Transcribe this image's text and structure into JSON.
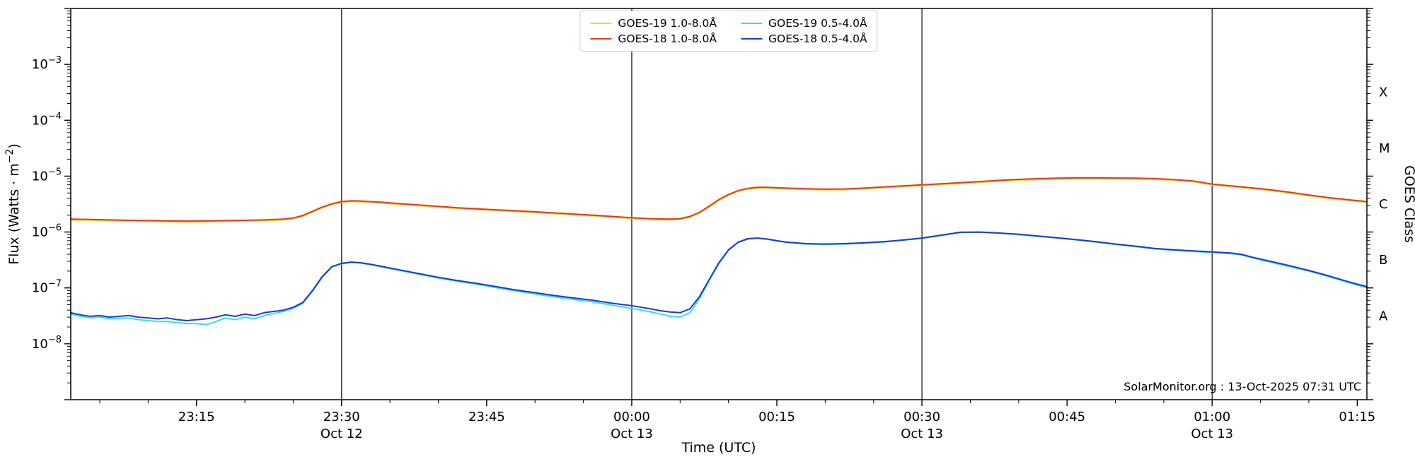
{
  "figure": {
    "background": "#ffffff"
  },
  "legend": {
    "entries": [
      {
        "label": "GOES-19 1.0-8.0Å",
        "color": "#ffd021"
      },
      {
        "label": "GOES-18 1.0-8.0Å",
        "color": "#e8391c"
      },
      {
        "label": "GOES-19 0.5-4.0Å",
        "color": "#2fe1f2"
      },
      {
        "label": "GOES-18 0.5-4.0Å",
        "color": "#2137d6"
      }
    ]
  },
  "chart_data": {
    "type": "line",
    "title": "",
    "xlabel": "Time (UTC)",
    "ylabel": "Flux (Watts · m⁻²)",
    "ylabel_parts": [
      "Flux (Watts · m",
      "−2",
      ")"
    ],
    "right_axis_label": "GOES Class",
    "y_scale": "log",
    "grid": false,
    "legend_position": "upper center",
    "ylim_exponents": [
      -9,
      -2
    ],
    "x_domain_minutes": [
      2,
      136
    ],
    "x_minor_step_minutes": 5,
    "annotation": "SolarMonitor.org : 13-Oct-2025 07:31 UTC",
    "y_ticks": [
      {
        "exponent": -3,
        "base": "10",
        "sup": "−3"
      },
      {
        "exponent": -4,
        "base": "10",
        "sup": "−4"
      },
      {
        "exponent": -5,
        "base": "10",
        "sup": "−5"
      },
      {
        "exponent": -6,
        "base": "10",
        "sup": "−6"
      },
      {
        "exponent": -7,
        "base": "10",
        "sup": "−7"
      },
      {
        "exponent": -8,
        "base": "10",
        "sup": "−8"
      }
    ],
    "x_ticks": [
      {
        "t": 15,
        "label": "23:15"
      },
      {
        "t": 30,
        "label": "23:30",
        "date": "Oct 12"
      },
      {
        "t": 45,
        "label": "23:45"
      },
      {
        "t": 60,
        "label": "00:00",
        "date": "Oct 13"
      },
      {
        "t": 75,
        "label": "00:15"
      },
      {
        "t": 90,
        "label": "00:30",
        "date": "Oct 13"
      },
      {
        "t": 105,
        "label": "00:45"
      },
      {
        "t": 120,
        "label": "01:00",
        "date": "Oct 13"
      },
      {
        "t": 135,
        "label": "01:15"
      }
    ],
    "day_separator_t": [
      30,
      60,
      90,
      120
    ],
    "goes_classes": [
      {
        "label": "X",
        "exponent": -3.5
      },
      {
        "label": "M",
        "exponent": -4.5
      },
      {
        "label": "C",
        "exponent": -5.5
      },
      {
        "label": "B",
        "exponent": -6.5
      },
      {
        "label": "A",
        "exponent": -7.5
      }
    ],
    "series": [
      {
        "id": "goes19-long",
        "name": "GOES-19 1.0-8.0Å",
        "color": "#ffd021",
        "t": [
          2,
          4,
          6,
          8,
          10,
          12,
          14,
          16,
          18,
          20,
          22,
          24,
          25,
          26,
          27,
          28,
          29,
          30,
          31,
          32,
          34,
          36,
          38,
          40,
          42,
          44,
          46,
          48,
          50,
          52,
          54,
          56,
          58,
          60,
          62,
          64,
          65,
          66,
          67,
          68,
          69,
          70,
          71,
          72,
          73,
          74,
          75,
          76,
          78,
          80,
          82,
          84,
          86,
          88,
          90,
          92,
          94,
          96,
          98,
          100,
          102,
          104,
          106,
          108,
          110,
          112,
          114,
          116,
          118,
          120,
          122,
          124,
          126,
          128,
          130,
          132,
          134,
          136
        ],
        "flux": [
          1.65e-06,
          1.63e-06,
          1.6e-06,
          1.57e-06,
          1.55e-06,
          1.53e-06,
          1.52e-06,
          1.53e-06,
          1.55e-06,
          1.57e-06,
          1.6e-06,
          1.65e-06,
          1.73e-06,
          1.92e-06,
          2.28e-06,
          2.72e-06,
          3.1e-06,
          3.4e-06,
          3.51e-06,
          3.47e-06,
          3.32e-06,
          3.12e-06,
          2.96e-06,
          2.79e-06,
          2.64e-06,
          2.52e-06,
          2.43e-06,
          2.33e-06,
          2.23e-06,
          2.13e-06,
          2.04e-06,
          1.94e-06,
          1.84e-06,
          1.75e-06,
          1.68e-06,
          1.65e-06,
          1.68e-06,
          1.84e-06,
          2.18e-06,
          2.81e-06,
          3.69e-06,
          4.56e-06,
          5.34e-06,
          5.87e-06,
          6.11e-06,
          6.11e-06,
          6.01e-06,
          5.92e-06,
          5.77e-06,
          5.67e-06,
          5.72e-06,
          5.92e-06,
          6.21e-06,
          6.5e-06,
          6.79e-06,
          7.08e-06,
          7.42e-06,
          7.76e-06,
          8.15e-06,
          8.49e-06,
          8.73e-06,
          8.92e-06,
          9.02e-06,
          9.02e-06,
          8.97e-06,
          8.92e-06,
          8.78e-06,
          8.44e-06,
          7.95e-06,
          6.98e-06,
          6.5e-06,
          6.01e-06,
          5.53e-06,
          5e-06,
          4.46e-06,
          4.03e-06,
          3.69e-06,
          3.4e-06
        ]
      },
      {
        "id": "goes19-short",
        "name": "GOES-19 0.5-4.0Å",
        "color": "#2fe1f2",
        "t": [
          2,
          3,
          4,
          5,
          6,
          8,
          9,
          10,
          11,
          12,
          13,
          14,
          15,
          16,
          17,
          18,
          19,
          20,
          21,
          22,
          23,
          24,
          25,
          26,
          27,
          28,
          29,
          30,
          31,
          32,
          33,
          34,
          36,
          38,
          40,
          42,
          44,
          46,
          48,
          50,
          52,
          54,
          56,
          58,
          60,
          61,
          62,
          63,
          64,
          65,
          66,
          67,
          68,
          69,
          70,
          71,
          72,
          73,
          74,
          75,
          76,
          78,
          80,
          82,
          84,
          86,
          88,
          90,
          92,
          94,
          96,
          98,
          100,
          102,
          104,
          106,
          108,
          110,
          112,
          114,
          116,
          118,
          120,
          122,
          123,
          124,
          126,
          128,
          130,
          132,
          134,
          136
        ],
        "flux": [
          3.4e-08,
          3.1e-08,
          2.9e-08,
          3e-08,
          2.8e-08,
          2.9e-08,
          2.7e-08,
          2.6e-08,
          2.5e-08,
          2.5e-08,
          2.4e-08,
          2.3e-08,
          2.3e-08,
          2.2e-08,
          2.5e-08,
          2.9e-08,
          2.7e-08,
          3e-08,
          2.8e-08,
          3.2e-08,
          3.5e-08,
          3.8e-08,
          4.3e-08,
          5.3e-08,
          8.7e-08,
          1.55e-07,
          2.35e-07,
          2.7e-07,
          2.85e-07,
          2.78e-07,
          2.6e-07,
          2.4e-07,
          2.05e-07,
          1.76e-07,
          1.5e-07,
          1.31e-07,
          1.16e-07,
          1.01e-07,
          8.8e-08,
          7.8e-08,
          6.9e-08,
          6.2e-08,
          5.6e-08,
          4.9e-08,
          4.3e-08,
          4e-08,
          3.7e-08,
          3.4e-08,
          3.1e-08,
          3e-08,
          3.6e-08,
          6.4e-08,
          1.35e-07,
          2.7e-07,
          4.7e-07,
          6.5e-07,
          7.5e-07,
          7.7e-07,
          7.4e-07,
          6.9e-07,
          6.5e-07,
          6.1e-07,
          6e-07,
          6.1e-07,
          6.3e-07,
          6.6e-07,
          7.1e-07,
          7.7e-07,
          8.7e-07,
          9.8e-07,
          9.9e-07,
          9.5e-07,
          9e-07,
          8.4e-07,
          7.8e-07,
          7.2e-07,
          6.6e-07,
          6e-07,
          5.5e-07,
          5e-07,
          4.7e-07,
          4.5e-07,
          4.3e-07,
          4.1e-07,
          3.9e-07,
          3.5e-07,
          2.9e-07,
          2.4e-07,
          2e-07,
          1.6e-07,
          1.26e-07,
          1e-07
        ]
      },
      {
        "id": "goes18-short",
        "name": "GOES-18 0.5-4.0Å",
        "color": "#2137d6",
        "t": [
          2,
          3,
          4,
          5,
          6,
          8,
          9,
          10,
          11,
          12,
          13,
          14,
          15,
          16,
          17,
          18,
          19,
          20,
          21,
          22,
          23,
          24,
          25,
          26,
          27,
          28,
          29,
          30,
          31,
          32,
          33,
          34,
          36,
          38,
          40,
          42,
          44,
          46,
          48,
          50,
          52,
          54,
          56,
          58,
          60,
          61,
          62,
          63,
          64,
          65,
          66,
          67,
          68,
          69,
          70,
          71,
          72,
          73,
          74,
          75,
          76,
          78,
          80,
          82,
          84,
          86,
          88,
          90,
          92,
          94,
          96,
          98,
          100,
          102,
          104,
          106,
          108,
          110,
          112,
          114,
          116,
          118,
          120,
          122,
          123,
          124,
          126,
          128,
          130,
          132,
          134,
          136
        ],
        "flux": [
          3.6e-08,
          3.3e-08,
          3.1e-08,
          3.2e-08,
          3e-08,
          3.2e-08,
          3e-08,
          2.9e-08,
          2.8e-08,
          2.9e-08,
          2.7e-08,
          2.6e-08,
          2.7e-08,
          2.8e-08,
          3e-08,
          3.3e-08,
          3.1e-08,
          3.4e-08,
          3.2e-08,
          3.6e-08,
          3.8e-08,
          4e-08,
          4.5e-08,
          5.5e-08,
          9e-08,
          1.6e-07,
          2.4e-07,
          2.75e-07,
          2.9e-07,
          2.82e-07,
          2.65e-07,
          2.45e-07,
          2.1e-07,
          1.8e-07,
          1.55e-07,
          1.35e-07,
          1.2e-07,
          1.05e-07,
          9.2e-08,
          8.2e-08,
          7.3e-08,
          6.6e-08,
          6e-08,
          5.3e-08,
          4.8e-08,
          4.5e-08,
          4.2e-08,
          3.9e-08,
          3.7e-08,
          3.6e-08,
          4.2e-08,
          7e-08,
          1.4e-07,
          2.8e-07,
          4.8e-07,
          6.6e-07,
          7.6e-07,
          7.8e-07,
          7.5e-07,
          7e-07,
          6.6e-07,
          6.2e-07,
          6.1e-07,
          6.2e-07,
          6.4e-07,
          6.7e-07,
          7.2e-07,
          7.8e-07,
          8.8e-07,
          9.9e-07,
          1e-06,
          9.6e-07,
          9.1e-07,
          8.5e-07,
          7.9e-07,
          7.3e-07,
          6.7e-07,
          6.1e-07,
          5.6e-07,
          5.1e-07,
          4.8e-07,
          4.6e-07,
          4.4e-07,
          4.2e-07,
          4e-07,
          3.6e-07,
          3e-07,
          2.5e-07,
          2.05e-07,
          1.65e-07,
          1.3e-07,
          1.05e-07
        ]
      },
      {
        "id": "goes18-long",
        "name": "GOES-18 1.0-8.0Å",
        "color": "#e8391c",
        "t": [
          2,
          4,
          6,
          8,
          10,
          12,
          14,
          16,
          18,
          20,
          22,
          24,
          25,
          26,
          27,
          28,
          29,
          30,
          31,
          32,
          34,
          36,
          38,
          40,
          42,
          44,
          46,
          48,
          50,
          52,
          54,
          56,
          58,
          60,
          62,
          64,
          65,
          66,
          67,
          68,
          69,
          70,
          71,
          72,
          73,
          74,
          75,
          76,
          78,
          80,
          82,
          84,
          86,
          88,
          90,
          92,
          94,
          96,
          98,
          100,
          102,
          104,
          106,
          108,
          110,
          112,
          114,
          116,
          118,
          120,
          122,
          124,
          126,
          128,
          130,
          132,
          134,
          136
        ],
        "flux": [
          1.7e-06,
          1.68e-06,
          1.65e-06,
          1.62e-06,
          1.6e-06,
          1.58e-06,
          1.57e-06,
          1.58e-06,
          1.6e-06,
          1.62e-06,
          1.65e-06,
          1.7e-06,
          1.78e-06,
          1.98e-06,
          2.35e-06,
          2.8e-06,
          3.2e-06,
          3.5e-06,
          3.62e-06,
          3.58e-06,
          3.42e-06,
          3.22e-06,
          3.05e-06,
          2.88e-06,
          2.72e-06,
          2.6e-06,
          2.5e-06,
          2.4e-06,
          2.3e-06,
          2.2e-06,
          2.1e-06,
          2e-06,
          1.9e-06,
          1.8e-06,
          1.73e-06,
          1.7e-06,
          1.73e-06,
          1.9e-06,
          2.25e-06,
          2.9e-06,
          3.8e-06,
          4.7e-06,
          5.5e-06,
          6.05e-06,
          6.3e-06,
          6.3e-06,
          6.2e-06,
          6.1e-06,
          5.95e-06,
          5.85e-06,
          5.9e-06,
          6.1e-06,
          6.4e-06,
          6.7e-06,
          7e-06,
          7.3e-06,
          7.65e-06,
          8e-06,
          8.4e-06,
          8.75e-06,
          9e-06,
          9.2e-06,
          9.3e-06,
          9.3e-06,
          9.25e-06,
          9.2e-06,
          9.05e-06,
          8.7e-06,
          8.2e-06,
          7.2e-06,
          6.7e-06,
          6.2e-06,
          5.7e-06,
          5.15e-06,
          4.6e-06,
          4.15e-06,
          3.8e-06,
          3.5e-06
        ]
      }
    ]
  }
}
